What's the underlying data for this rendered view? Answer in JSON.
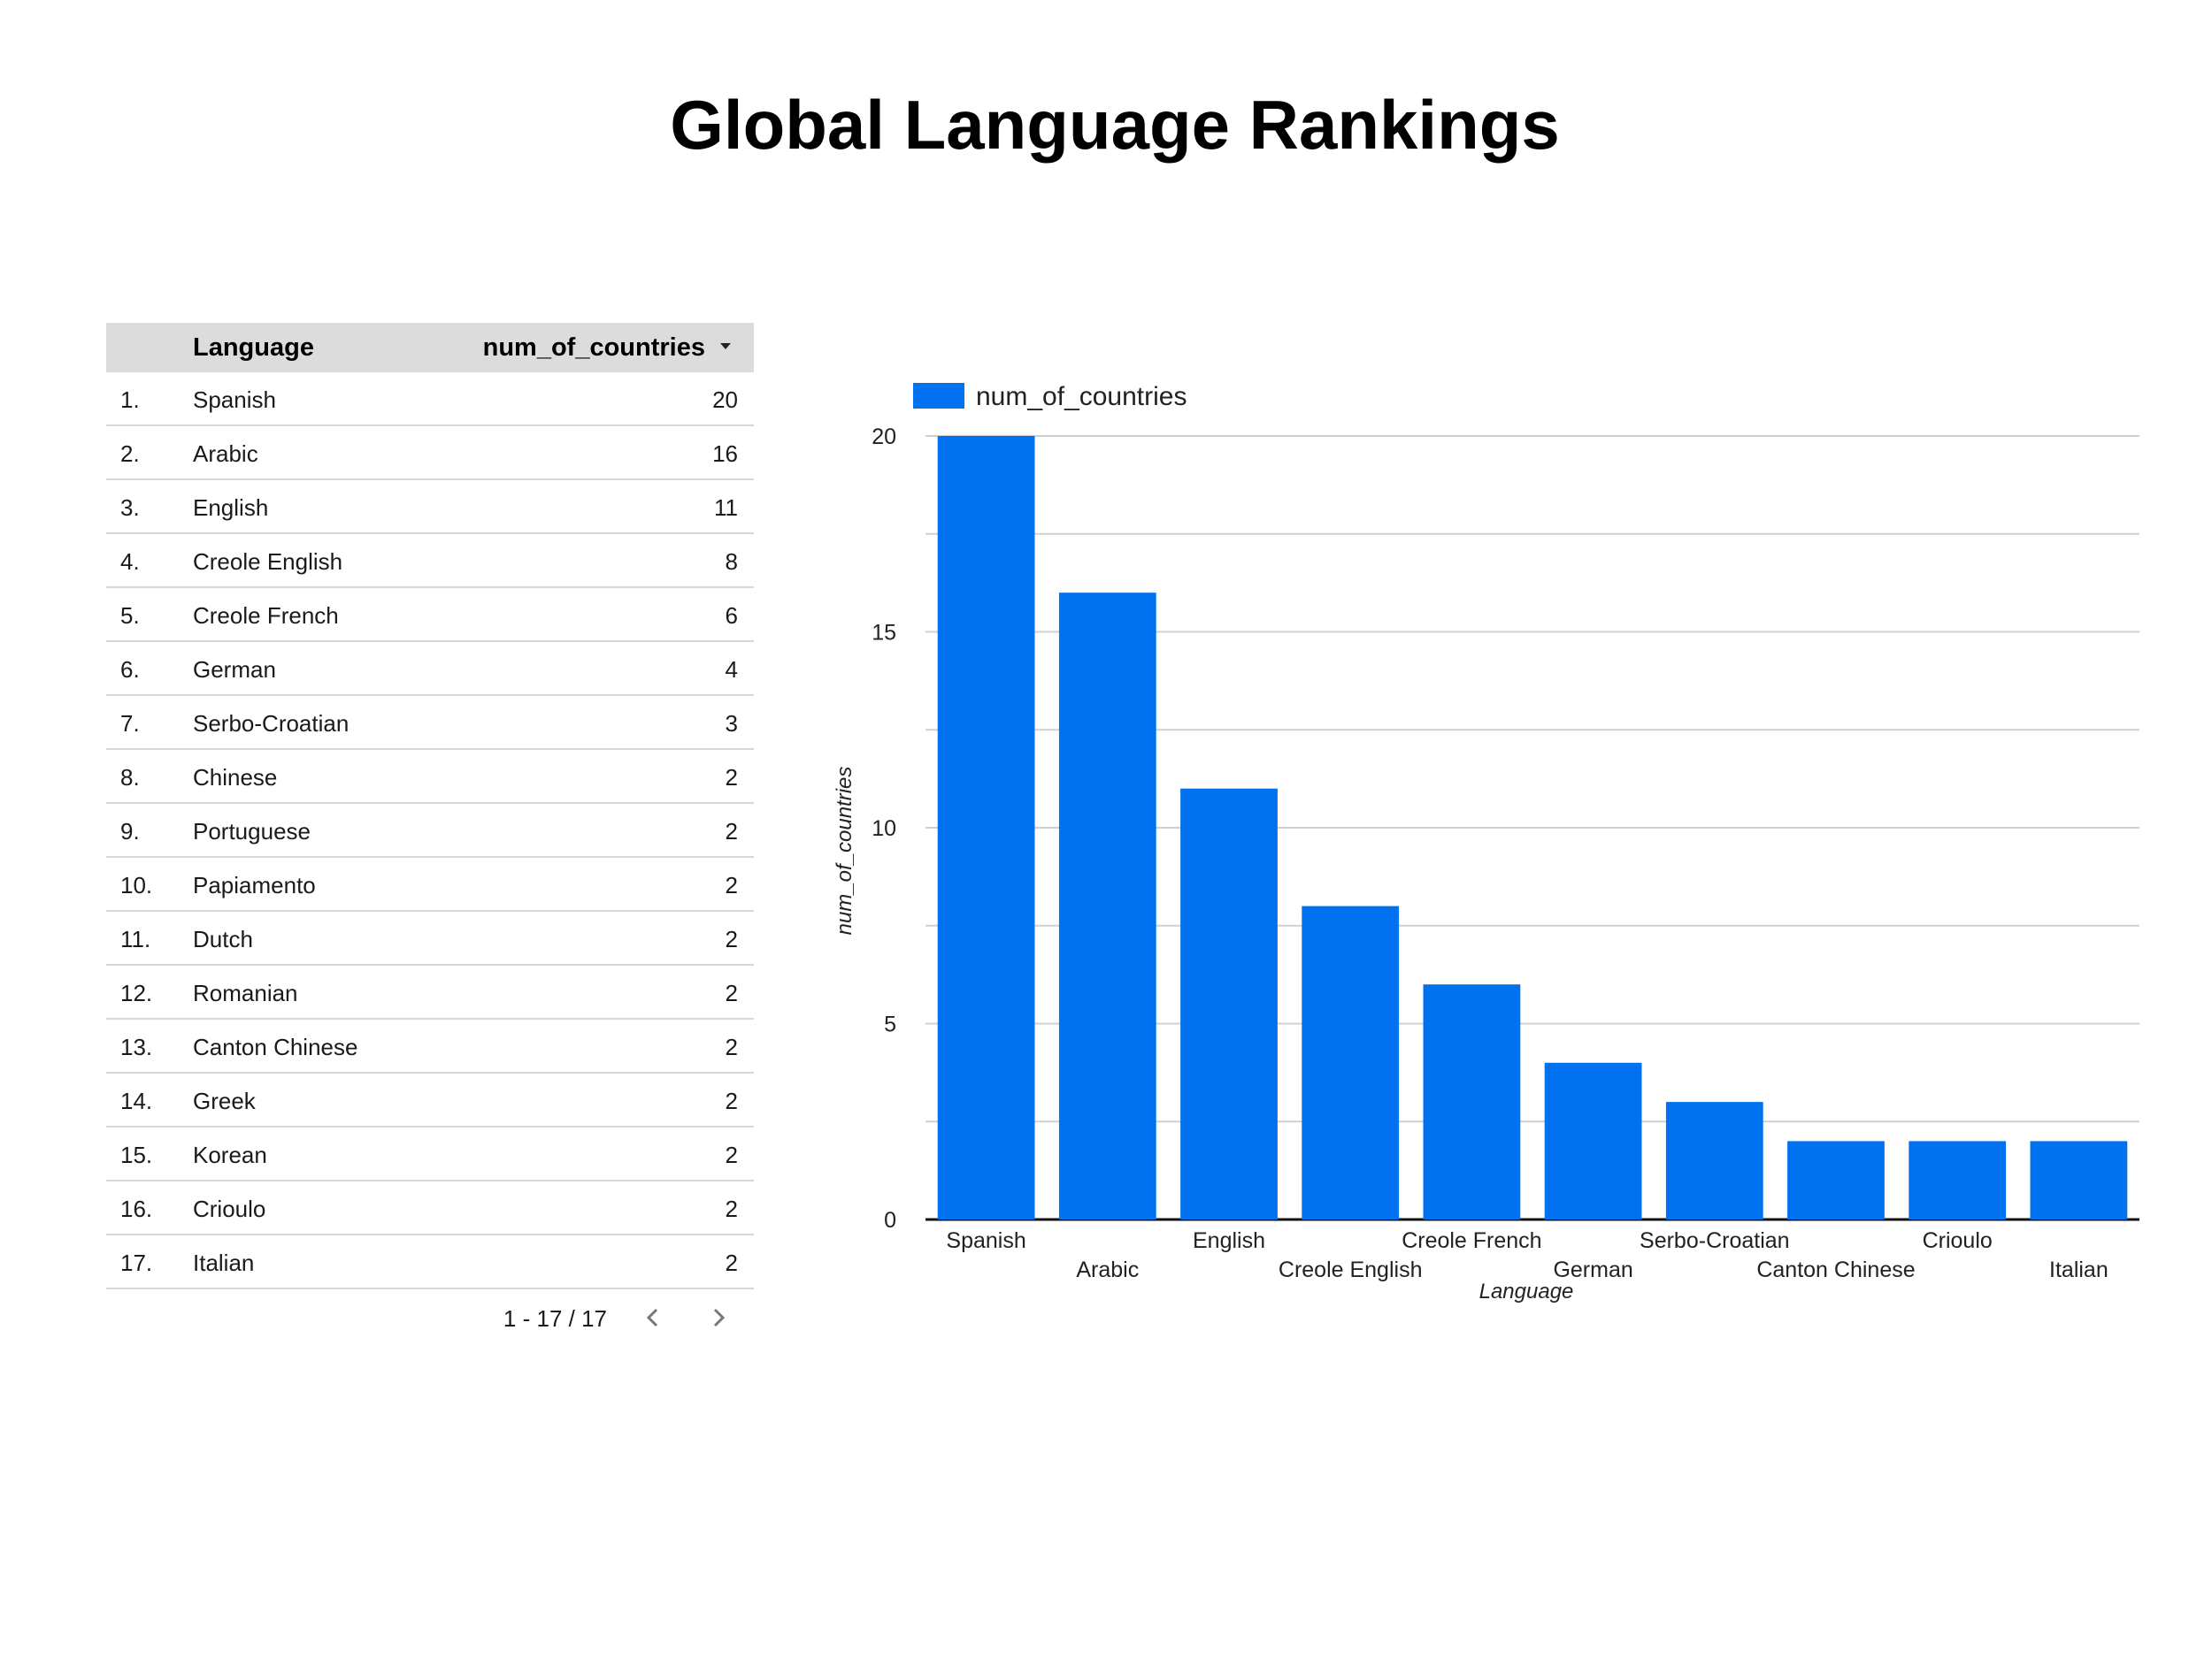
{
  "title": "Global Language Rankings",
  "table": {
    "headers": {
      "language": "Language",
      "count": "num_of_countries"
    },
    "rows": [
      {
        "index": "1.",
        "language": "Spanish",
        "count": "20"
      },
      {
        "index": "2.",
        "language": "Arabic",
        "count": "16"
      },
      {
        "index": "3.",
        "language": "English",
        "count": "11"
      },
      {
        "index": "4.",
        "language": "Creole English",
        "count": "8"
      },
      {
        "index": "5.",
        "language": "Creole French",
        "count": "6"
      },
      {
        "index": "6.",
        "language": "German",
        "count": "4"
      },
      {
        "index": "7.",
        "language": "Serbo-Croatian",
        "count": "3"
      },
      {
        "index": "8.",
        "language": "Chinese",
        "count": "2"
      },
      {
        "index": "9.",
        "language": "Portuguese",
        "count": "2"
      },
      {
        "index": "10.",
        "language": "Papiamento",
        "count": "2"
      },
      {
        "index": "11.",
        "language": "Dutch",
        "count": "2"
      },
      {
        "index": "12.",
        "language": "Romanian",
        "count": "2"
      },
      {
        "index": "13.",
        "language": "Canton Chinese",
        "count": "2"
      },
      {
        "index": "14.",
        "language": "Greek",
        "count": "2"
      },
      {
        "index": "15.",
        "language": "Korean",
        "count": "2"
      },
      {
        "index": "16.",
        "language": "Crioulo",
        "count": "2"
      },
      {
        "index": "17.",
        "language": "Italian",
        "count": "2"
      }
    ],
    "pagination": "1 - 17 / 17",
    "sort_icon": "caret-down-icon",
    "prev_icon": "chevron-left-icon",
    "next_icon": "chevron-right-icon"
  },
  "chart_data": {
    "type": "bar",
    "categories": [
      "Spanish",
      "Arabic",
      "English",
      "Creole English",
      "Creole French",
      "German",
      "Serbo-Croatian",
      "Canton Chinese",
      "Crioulo",
      "Italian"
    ],
    "series": [
      {
        "name": "num_of_countries",
        "values": [
          20,
          16,
          11,
          8,
          6,
          4,
          3,
          2,
          2,
          2
        ],
        "color": "#0072f0"
      }
    ],
    "xlabel": "Language",
    "ylabel": "num_of_countries",
    "ylim": [
      0,
      20
    ],
    "yticks": [
      0,
      5,
      10,
      15,
      20
    ],
    "grid": true,
    "legend": "top-left"
  }
}
